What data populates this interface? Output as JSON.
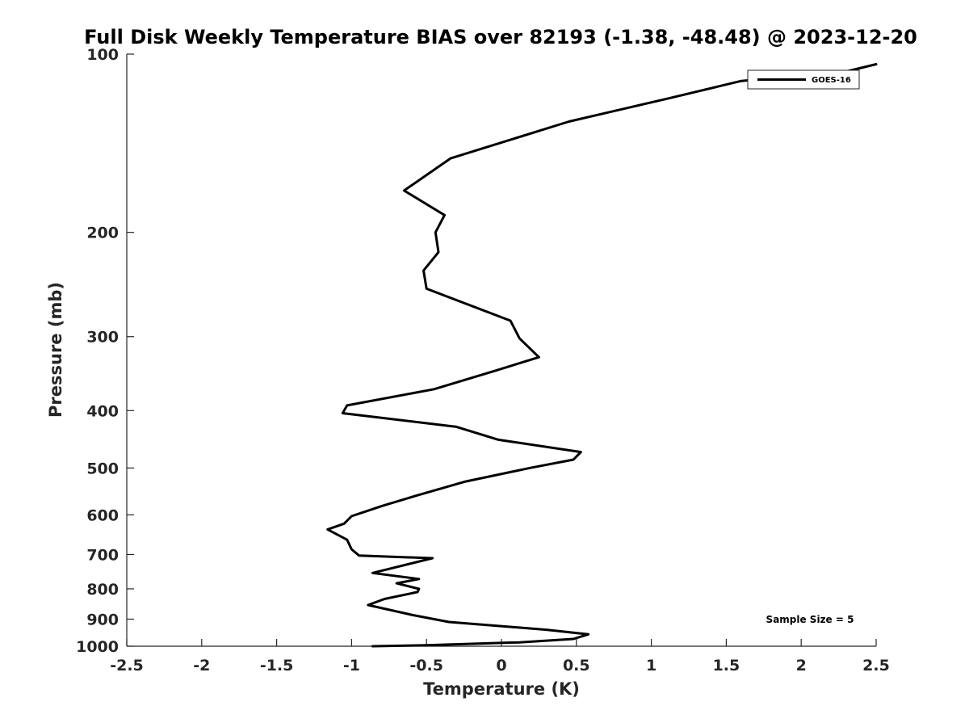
{
  "chart_data": {
    "type": "line",
    "title": "Full Disk Weekly Temperature BIAS over 82193 (-1.38, -48.48) @ 2023-12-20",
    "xlabel": "Temperature (K)",
    "ylabel": "Pressure (mb)",
    "xlim": [
      -2.5,
      2.5
    ],
    "ylim": [
      100,
      1000
    ],
    "y_scale": "log",
    "y_reversed": true,
    "x_ticks": [
      -2.5,
      -2,
      -1.5,
      -1,
      -0.5,
      0,
      0.5,
      1,
      1.5,
      2,
      2.5
    ],
    "x_tick_labels": [
      "-2.5",
      "-2",
      "-1.5",
      "-1",
      "-0.5",
      "0",
      "0.5",
      "1",
      "1.5",
      "2",
      "2.5"
    ],
    "y_ticks": [
      100,
      200,
      300,
      400,
      500,
      600,
      700,
      800,
      900,
      1000
    ],
    "y_tick_labels": [
      "100",
      "200",
      "300",
      "400",
      "500",
      "600",
      "700",
      "800",
      "900",
      "1000"
    ],
    "grid": false,
    "legend_position": "top-right",
    "annotation": "Sample Size = 5",
    "series": [
      {
        "name": "GOES-16",
        "color": "#000000",
        "points": [
          {
            "x": 2.5,
            "y": 104
          },
          {
            "x": 2.3,
            "y": 107
          },
          {
            "x": 1.6,
            "y": 111
          },
          {
            "x": 1.1,
            "y": 119
          },
          {
            "x": 0.45,
            "y": 130
          },
          {
            "x": -0.34,
            "y": 150
          },
          {
            "x": -0.65,
            "y": 170
          },
          {
            "x": -0.38,
            "y": 187
          },
          {
            "x": -0.44,
            "y": 200
          },
          {
            "x": -0.42,
            "y": 216
          },
          {
            "x": -0.52,
            "y": 232
          },
          {
            "x": -0.5,
            "y": 249
          },
          {
            "x": 0.06,
            "y": 282
          },
          {
            "x": 0.12,
            "y": 302
          },
          {
            "x": 0.25,
            "y": 325
          },
          {
            "x": -0.05,
            "y": 343
          },
          {
            "x": -0.45,
            "y": 368
          },
          {
            "x": -1.03,
            "y": 392
          },
          {
            "x": -1.06,
            "y": 404
          },
          {
            "x": -0.3,
            "y": 426
          },
          {
            "x": -0.02,
            "y": 448
          },
          {
            "x": 0.53,
            "y": 470
          },
          {
            "x": 0.48,
            "y": 484
          },
          {
            "x": 0.19,
            "y": 500
          },
          {
            "x": -0.24,
            "y": 527
          },
          {
            "x": -0.57,
            "y": 557
          },
          {
            "x": -0.8,
            "y": 580
          },
          {
            "x": -1.0,
            "y": 603
          },
          {
            "x": -1.05,
            "y": 621
          },
          {
            "x": -1.16,
            "y": 635
          },
          {
            "x": -1.03,
            "y": 661
          },
          {
            "x": -1.0,
            "y": 686
          },
          {
            "x": -0.95,
            "y": 703
          },
          {
            "x": -0.46,
            "y": 710
          },
          {
            "x": -0.86,
            "y": 752
          },
          {
            "x": -0.55,
            "y": 770
          },
          {
            "x": -0.7,
            "y": 783
          },
          {
            "x": -0.55,
            "y": 800
          },
          {
            "x": -0.56,
            "y": 810
          },
          {
            "x": -0.78,
            "y": 832
          },
          {
            "x": -0.89,
            "y": 852
          },
          {
            "x": -0.6,
            "y": 885
          },
          {
            "x": -0.35,
            "y": 910
          },
          {
            "x": 0.3,
            "y": 938
          },
          {
            "x": 0.58,
            "y": 955
          },
          {
            "x": 0.48,
            "y": 972
          },
          {
            "x": 0.12,
            "y": 985
          },
          {
            "x": -0.5,
            "y": 996
          },
          {
            "x": -0.86,
            "y": 1000
          }
        ]
      }
    ]
  }
}
